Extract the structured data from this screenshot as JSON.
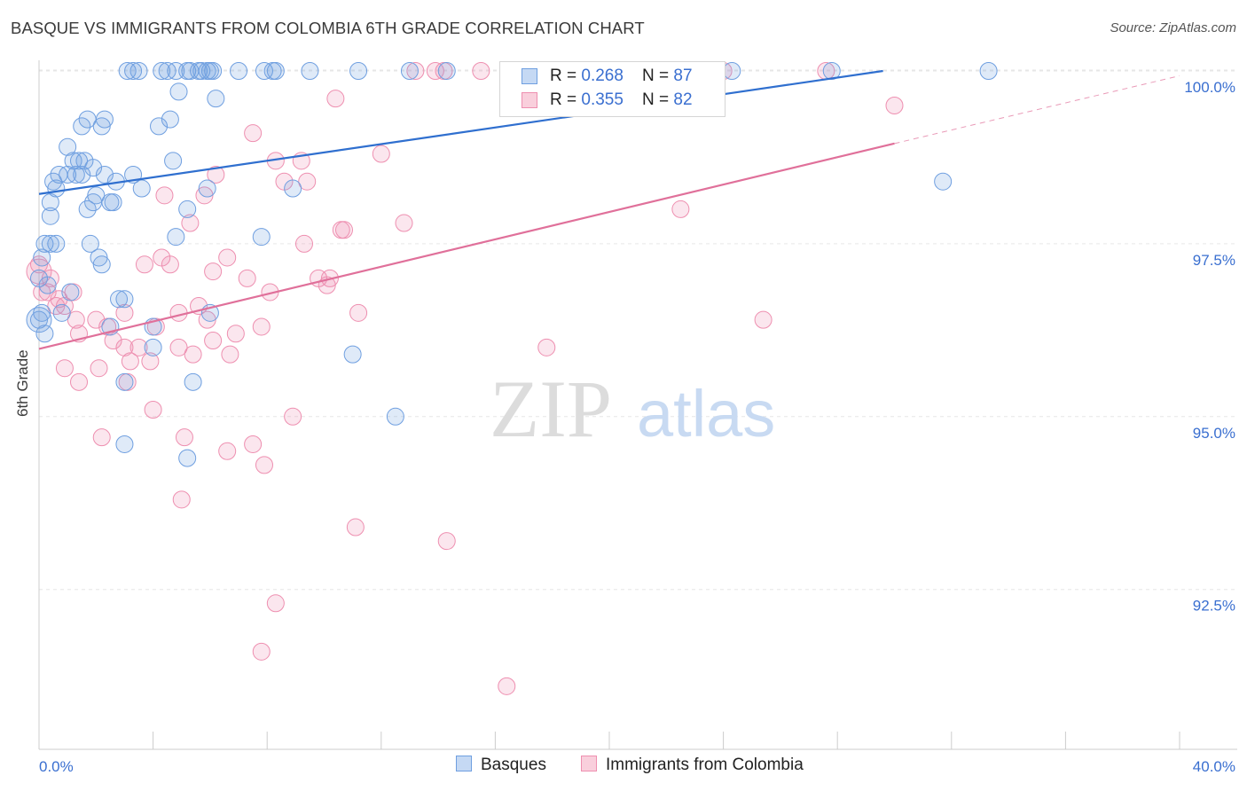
{
  "header": {
    "title": "BASQUE VS IMMIGRANTS FROM COLOMBIA 6TH GRADE CORRELATION CHART",
    "source": "Source: ZipAtlas.com"
  },
  "watermark": {
    "zip": "ZIP",
    "atlas": "atlas"
  },
  "legend": {
    "basques": {
      "r_label": "R = ",
      "r_value": "0.268",
      "n_label": "N = ",
      "n_value": "87"
    },
    "colombia": {
      "r_label": "R = ",
      "r_value": "0.355",
      "n_label": "N = ",
      "n_value": "82"
    }
  },
  "bottom_legend": {
    "basques": "Basques",
    "colombia": "Immigrants from Colombia"
  },
  "colors": {
    "blue": "#6f9fe0",
    "blue_line": "#2f6fcf",
    "pink": "#ee8fb0",
    "pink_line": "#e0709a",
    "tick_label": "#3a6fd0"
  },
  "chart_data": {
    "type": "scatter",
    "ylabel": "6th Grade",
    "xlim": [
      0,
      40
    ],
    "ylim": [
      90.2,
      100.2
    ],
    "x_tick_labels": [
      {
        "x": 0,
        "label": "0.0%"
      },
      {
        "x": 40,
        "label": "40.0%"
      }
    ],
    "y_ticks": [
      {
        "y": 100.0,
        "label": "100.0%"
      },
      {
        "y": 97.5,
        "label": "97.5%"
      },
      {
        "y": 95.0,
        "label": "95.0%"
      },
      {
        "y": 92.5,
        "label": "92.5%"
      }
    ],
    "grid": true,
    "series": [
      {
        "name": "Basques",
        "color": "#6f9fe0",
        "trend": {
          "x0": 0,
          "y0": 98.22,
          "x1": 29.6,
          "y1": 100.0
        },
        "points": [
          [
            3.1,
            100
          ],
          [
            3.3,
            100
          ],
          [
            3.5,
            100
          ],
          [
            4.3,
            100
          ],
          [
            4.5,
            100
          ],
          [
            4.8,
            100
          ],
          [
            5.2,
            100
          ],
          [
            5.3,
            100
          ],
          [
            5.6,
            100
          ],
          [
            5.7,
            100
          ],
          [
            5.9,
            100
          ],
          [
            6.0,
            100
          ],
          [
            6.1,
            100
          ],
          [
            7.0,
            100
          ],
          [
            7.9,
            100
          ],
          [
            8.2,
            100
          ],
          [
            8.3,
            100
          ],
          [
            9.5,
            100
          ],
          [
            11.2,
            100
          ],
          [
            13.0,
            100
          ],
          [
            14.3,
            100
          ],
          [
            24.3,
            100
          ],
          [
            27.8,
            100
          ],
          [
            33.3,
            100
          ],
          [
            4.9,
            99.7
          ],
          [
            6.2,
            99.6
          ],
          [
            1.7,
            99.3
          ],
          [
            4.6,
            99.3
          ],
          [
            1.5,
            99.2
          ],
          [
            2.3,
            99.3
          ],
          [
            2.2,
            99.2
          ],
          [
            4.2,
            99.2
          ],
          [
            1.0,
            98.9
          ],
          [
            1.2,
            98.7
          ],
          [
            1.6,
            98.7
          ],
          [
            1.4,
            98.7
          ],
          [
            4.7,
            98.7
          ],
          [
            1.9,
            98.6
          ],
          [
            0.7,
            98.5
          ],
          [
            1.0,
            98.5
          ],
          [
            1.3,
            98.5
          ],
          [
            2.3,
            98.5
          ],
          [
            1.5,
            98.5
          ],
          [
            3.3,
            98.5
          ],
          [
            0.5,
            98.4
          ],
          [
            2.7,
            98.4
          ],
          [
            0.6,
            98.3
          ],
          [
            3.6,
            98.3
          ],
          [
            2.0,
            98.2
          ],
          [
            5.9,
            98.3
          ],
          [
            8.9,
            98.3
          ],
          [
            31.7,
            98.4
          ],
          [
            0.4,
            98.1
          ],
          [
            1.9,
            98.1
          ],
          [
            2.6,
            98.1
          ],
          [
            2.5,
            98.1
          ],
          [
            1.7,
            98.0
          ],
          [
            5.2,
            98.0
          ],
          [
            0.4,
            97.9
          ],
          [
            0.2,
            97.5
          ],
          [
            0.4,
            97.5
          ],
          [
            0.6,
            97.5
          ],
          [
            1.8,
            97.5
          ],
          [
            4.8,
            97.6
          ],
          [
            7.8,
            97.6
          ],
          [
            0.1,
            97.3
          ],
          [
            2.1,
            97.3
          ],
          [
            2.2,
            97.2
          ],
          [
            3.0,
            96.7
          ],
          [
            0.1,
            96.5
          ],
          [
            0.0,
            96.4
          ],
          [
            0.8,
            96.5
          ],
          [
            2.5,
            96.3
          ],
          [
            4.0,
            96.3
          ],
          [
            4.0,
            96.0
          ],
          [
            11.0,
            95.9
          ],
          [
            3.0,
            95.5
          ],
          [
            5.4,
            95.5
          ],
          [
            12.5,
            95.0
          ],
          [
            3.0,
            94.6
          ],
          [
            5.2,
            94.4
          ],
          [
            0.0,
            97.0
          ],
          [
            0.3,
            96.9
          ],
          [
            1.1,
            96.8
          ],
          [
            0.2,
            96.2
          ],
          [
            6.0,
            96.5
          ],
          [
            2.8,
            96.7
          ]
        ]
      },
      {
        "name": "Immigrants from Colombia",
        "color": "#ee8fb0",
        "trend": {
          "x0": 0,
          "y0": 95.98,
          "x1": 30.0,
          "y1": 98.95
        },
        "trend_dashed": {
          "x0": 30.0,
          "y0": 98.95,
          "x1": 40,
          "y1": 99.93
        },
        "points": [
          [
            13.2,
            100
          ],
          [
            13.9,
            100
          ],
          [
            15.5,
            100
          ],
          [
            21.0,
            100
          ],
          [
            24.0,
            100
          ],
          [
            27.6,
            100
          ],
          [
            14.2,
            100
          ],
          [
            10.4,
            99.6
          ],
          [
            30.0,
            99.5
          ],
          [
            7.5,
            99.1
          ],
          [
            8.3,
            98.7
          ],
          [
            9.2,
            98.7
          ],
          [
            12.0,
            98.8
          ],
          [
            6.2,
            98.5
          ],
          [
            8.6,
            98.4
          ],
          [
            9.4,
            98.4
          ],
          [
            5.8,
            98.2
          ],
          [
            4.4,
            98.2
          ],
          [
            22.5,
            98.0
          ],
          [
            12.8,
            97.8
          ],
          [
            5.3,
            97.8
          ],
          [
            10.6,
            97.7
          ],
          [
            10.7,
            97.7
          ],
          [
            9.3,
            97.5
          ],
          [
            6.6,
            97.3
          ],
          [
            4.3,
            97.3
          ],
          [
            4.6,
            97.2
          ],
          [
            3.7,
            97.2
          ],
          [
            6.1,
            97.1
          ],
          [
            7.3,
            97.0
          ],
          [
            9.8,
            97.0
          ],
          [
            10.2,
            97.0
          ],
          [
            10.1,
            96.9
          ],
          [
            0.3,
            96.8
          ],
          [
            1.2,
            96.8
          ],
          [
            0.7,
            96.7
          ],
          [
            8.1,
            96.8
          ],
          [
            0.9,
            96.6
          ],
          [
            0.6,
            96.6
          ],
          [
            5.6,
            96.6
          ],
          [
            3.0,
            96.5
          ],
          [
            1.3,
            96.4
          ],
          [
            4.9,
            96.5
          ],
          [
            5.9,
            96.4
          ],
          [
            11.2,
            96.5
          ],
          [
            25.4,
            96.4
          ],
          [
            1.4,
            96.2
          ],
          [
            2.4,
            96.3
          ],
          [
            4.1,
            96.3
          ],
          [
            6.9,
            96.2
          ],
          [
            7.8,
            96.3
          ],
          [
            2.6,
            96.1
          ],
          [
            4.9,
            96.0
          ],
          [
            17.8,
            96.0
          ],
          [
            3.5,
            96.0
          ],
          [
            3.2,
            95.8
          ],
          [
            5.4,
            95.9
          ],
          [
            3.9,
            95.8
          ],
          [
            2.1,
            95.7
          ],
          [
            0.9,
            95.7
          ],
          [
            3.1,
            95.5
          ],
          [
            1.4,
            95.5
          ],
          [
            4.0,
            95.1
          ],
          [
            8.9,
            95.0
          ],
          [
            2.2,
            94.7
          ],
          [
            5.1,
            94.7
          ],
          [
            6.6,
            94.5
          ],
          [
            7.5,
            94.6
          ],
          [
            7.9,
            94.3
          ],
          [
            5.0,
            93.8
          ],
          [
            11.1,
            93.4
          ],
          [
            14.3,
            93.2
          ],
          [
            8.3,
            92.3
          ],
          [
            7.8,
            91.6
          ],
          [
            16.4,
            91.1
          ],
          [
            0.0,
            97.2
          ],
          [
            0.4,
            97.0
          ],
          [
            0.1,
            96.8
          ],
          [
            2.0,
            96.4
          ],
          [
            6.1,
            96.1
          ],
          [
            6.7,
            95.9
          ],
          [
            3.0,
            96.0
          ]
        ]
      }
    ]
  }
}
